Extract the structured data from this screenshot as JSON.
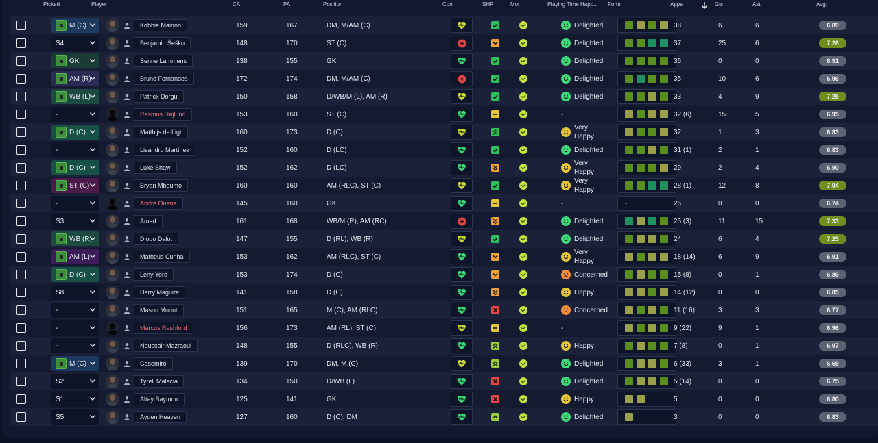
{
  "headers": {
    "picked": "Picked",
    "player": "Player",
    "ca": "CA",
    "pa": "PA",
    "position": "Position",
    "con": "Con",
    "shp": "SHP",
    "mor": "Mor",
    "playing_time": "Playing Time Happ...",
    "form": "Form",
    "apps": "Apps",
    "gls": "Gls",
    "ast": "Ast",
    "avg": "Avg."
  },
  "colors": {
    "con_green": "#3ed67a",
    "con_yellow": "#c9d93a",
    "con_red": "#e04848",
    "shp_green": "#2ec060",
    "shp_orange": "#e8a33a",
    "shp_yellow": "#e3c43a",
    "shp_lime": "#9ccc3a",
    "shp_red": "#e04848",
    "happy_green": "#3ed67a",
    "happy_yellow": "#e3c43a",
    "happy_orange": "#f28c3a"
  },
  "rows": [
    {
      "picked": "M (C)",
      "pos_style": "M",
      "pitch": true,
      "name": "Kobbie Mainoo",
      "loan": false,
      "ca": "159",
      "pa": "167",
      "position": "DM, M/AM (C)",
      "con": "con_yellow",
      "con_kind": "heart",
      "shp": "shp_green",
      "shp_kind": "check",
      "happy": "Delighted",
      "happy_color": "happy_green",
      "form": [
        "g",
        "y",
        "g",
        "y"
      ],
      "apps": "38",
      "gls": "6",
      "ast": "6",
      "avg": "6.89",
      "avg_hi": false
    },
    {
      "picked": "S4",
      "pos_style": "",
      "pitch": false,
      "name": "Benjamin Šeško",
      "loan": false,
      "ca": "148",
      "pa": "170",
      "position": "ST (C)",
      "con": "con_red",
      "con_kind": "cross",
      "shp": "shp_orange",
      "shp_kind": "down",
      "happy": "Delighted",
      "happy_color": "happy_green",
      "form": [
        "g",
        "g",
        "t",
        "t"
      ],
      "apps": "37",
      "gls": "25",
      "ast": "6",
      "avg": "7.28",
      "avg_hi": true
    },
    {
      "picked": "GK",
      "pos_style": "GK",
      "pitch": true,
      "name": "Senne Lammens",
      "loan": false,
      "ca": "138",
      "pa": "155",
      "position": "GK",
      "con": "con_green",
      "con_kind": "heart",
      "shp": "shp_green",
      "shp_kind": "check",
      "happy": "Delighted",
      "happy_color": "happy_green",
      "form": [
        "g",
        "g",
        "g",
        "g"
      ],
      "apps": "36",
      "gls": "0",
      "ast": "0",
      "avg": "6.91",
      "avg_hi": false
    },
    {
      "picked": "AM (R)",
      "pos_style": "AMR",
      "pitch": true,
      "name": "Bruno Fernandes",
      "loan": false,
      "ca": "172",
      "pa": "174",
      "position": "DM, M/AM (C)",
      "con": "con_red",
      "con_kind": "cross",
      "shp": "shp_green",
      "shp_kind": "check",
      "happy": "Delighted",
      "happy_color": "happy_green",
      "form": [
        "g",
        "t",
        "g",
        "g"
      ],
      "apps": "35",
      "gls": "10",
      "ast": "6",
      "avg": "6.96",
      "avg_hi": false
    },
    {
      "picked": "WB (L)",
      "pos_style": "WB",
      "pitch": true,
      "name": "Patrick Dorgu",
      "loan": false,
      "ca": "150",
      "pa": "158",
      "position": "D/WB/M (L), AM (R)",
      "con": "con_yellow",
      "con_kind": "heart",
      "shp": "shp_green",
      "shp_kind": "check",
      "happy": "Delighted",
      "happy_color": "happy_green",
      "form": [
        "g",
        "g",
        "y",
        "g"
      ],
      "apps": "33",
      "gls": "4",
      "ast": "9",
      "avg": "7.25",
      "avg_hi": true
    },
    {
      "picked": "-",
      "pos_style": "",
      "pitch": false,
      "name": "Rasmus Højlund",
      "loan": true,
      "ca": "153",
      "pa": "160",
      "position": "ST (C)",
      "con": "con_green",
      "con_kind": "heart",
      "shp": "shp_yellow",
      "shp_kind": "dash",
      "happy": "-",
      "happy_color": "",
      "form": [
        "y",
        "g",
        "y",
        "y"
      ],
      "apps": "32 (6)",
      "gls": "15",
      "ast": "5",
      "avg": "6.95",
      "avg_hi": false
    },
    {
      "picked": "D (C)",
      "pos_style": "D",
      "pitch": true,
      "name": "Matthijs de Ligt",
      "loan": false,
      "ca": "160",
      "pa": "173",
      "position": "D (C)",
      "con": "con_yellow",
      "con_kind": "heart",
      "shp": "shp_green",
      "shp_kind": "up2",
      "happy": "Very Happy",
      "happy_color": "happy_yellow",
      "form": [
        "y",
        "g",
        "g",
        "y"
      ],
      "apps": "32",
      "gls": "1",
      "ast": "3",
      "avg": "6.83",
      "avg_hi": false
    },
    {
      "picked": "-",
      "pos_style": "",
      "pitch": false,
      "name": "Lisandro Martínez",
      "loan": false,
      "ca": "152",
      "pa": "160",
      "position": "D (LC)",
      "con": "con_green",
      "con_kind": "heart",
      "shp": "shp_green",
      "shp_kind": "check",
      "happy": "Delighted",
      "happy_color": "happy_green",
      "form": [
        "g",
        "g",
        "y",
        "g"
      ],
      "apps": "31 (1)",
      "gls": "2",
      "ast": "1",
      "avg": "6.83",
      "avg_hi": false
    },
    {
      "picked": "D (C)",
      "pos_style": "D",
      "pitch": true,
      "name": "Luke Shaw",
      "loan": false,
      "ca": "152",
      "pa": "162",
      "position": "D (LC)",
      "con": "con_green",
      "con_kind": "heart",
      "shp": "shp_orange",
      "shp_kind": "down2",
      "happy": "Very Happy",
      "happy_color": "happy_yellow",
      "form": [
        "g",
        "g",
        "g",
        "y"
      ],
      "apps": "29",
      "gls": "2",
      "ast": "4",
      "avg": "6.90",
      "avg_hi": false
    },
    {
      "picked": "ST (C)",
      "pos_style": "ST",
      "pitch": true,
      "name": "Bryan Mbeumo",
      "loan": false,
      "ca": "160",
      "pa": "160",
      "position": "AM (RLC), ST (C)",
      "con": "con_yellow",
      "con_kind": "heart",
      "shp": "shp_green",
      "shp_kind": "check",
      "happy": "Very Happy",
      "happy_color": "happy_yellow",
      "form": [
        "g",
        "g",
        "t",
        "t"
      ],
      "apps": "28 (1)",
      "gls": "12",
      "ast": "8",
      "avg": "7.04",
      "avg_hi": true
    },
    {
      "picked": "-",
      "pos_style": "",
      "pitch": false,
      "name": "André Onana",
      "loan": true,
      "ca": "145",
      "pa": "160",
      "position": "GK",
      "con": "con_green",
      "con_kind": "heart",
      "shp": "shp_yellow",
      "shp_kind": "dash",
      "happy": "-",
      "happy_color": "",
      "form": [],
      "form_dash": "-",
      "apps": "26",
      "gls": "0",
      "ast": "0",
      "avg": "6.74",
      "avg_hi": false
    },
    {
      "picked": "S3",
      "pos_style": "",
      "pitch": false,
      "name": "Amad",
      "loan": false,
      "ca": "161",
      "pa": "168",
      "position": "WB/M (R), AM (RC)",
      "con": "con_red",
      "con_kind": "cross",
      "shp": "shp_orange",
      "shp_kind": "down2",
      "happy": "Delighted",
      "happy_color": "happy_green",
      "form": [
        "t",
        "y",
        "t",
        "g"
      ],
      "apps": "25 (3)",
      "gls": "11",
      "ast": "15",
      "avg": "7.33",
      "avg_hi": true
    },
    {
      "picked": "WB (R)",
      "pos_style": "WB",
      "pitch": true,
      "name": "Diogo Dalot",
      "loan": false,
      "ca": "147",
      "pa": "155",
      "position": "D (RL), WB (R)",
      "con": "con_yellow",
      "con_kind": "heart",
      "shp": "shp_green",
      "shp_kind": "check",
      "happy": "Delighted",
      "happy_color": "happy_green",
      "form": [
        "g",
        "y",
        "y",
        "g"
      ],
      "apps": "24",
      "gls": "6",
      "ast": "4",
      "avg": "7.25",
      "avg_hi": true
    },
    {
      "picked": "AM (L)",
      "pos_style": "AML",
      "pitch": true,
      "name": "Matheus Cunha",
      "loan": false,
      "ca": "153",
      "pa": "162",
      "position": "AM (RLC), ST (C)",
      "con": "con_green",
      "con_kind": "heart",
      "shp": "shp_orange",
      "shp_kind": "down",
      "happy": "Very Happy",
      "happy_color": "happy_yellow",
      "form": [
        "y",
        "g",
        "y",
        "y"
      ],
      "apps": "18 (14)",
      "gls": "6",
      "ast": "9",
      "avg": "6.91",
      "avg_hi": false
    },
    {
      "picked": "D (C)",
      "pos_style": "D",
      "pitch": true,
      "name": "Leny Yoro",
      "loan": false,
      "ca": "153",
      "pa": "174",
      "position": "D (C)",
      "con": "con_green",
      "con_kind": "heart",
      "shp": "shp_orange",
      "shp_kind": "down",
      "happy": "Concerned",
      "happy_color": "happy_orange",
      "form": [
        "g",
        "y",
        "g",
        "g"
      ],
      "apps": "15 (8)",
      "gls": "0",
      "ast": "1",
      "avg": "6.89",
      "avg_hi": false
    },
    {
      "picked": "S8",
      "pos_style": "",
      "pitch": false,
      "name": "Harry Maguire",
      "loan": false,
      "ca": "141",
      "pa": "158",
      "position": "D (C)",
      "con": "con_green",
      "con_kind": "heart",
      "shp": "shp_orange",
      "shp_kind": "down2",
      "happy": "Happy",
      "happy_color": "happy_yellow",
      "form": [
        "y",
        "y",
        "g",
        "y"
      ],
      "apps": "14 (12)",
      "gls": "0",
      "ast": "0",
      "avg": "6.85",
      "avg_hi": false
    },
    {
      "picked": "-",
      "pos_style": "",
      "pitch": false,
      "name": "Mason Mount",
      "loan": false,
      "ca": "151",
      "pa": "165",
      "position": "M (C), AM (RLC)",
      "con": "con_green",
      "con_kind": "heart",
      "shp": "shp_red",
      "shp_kind": "x",
      "happy": "Concerned",
      "happy_color": "happy_orange",
      "form": [
        "y",
        "g",
        "y",
        "g"
      ],
      "apps": "11 (16)",
      "gls": "3",
      "ast": "3",
      "avg": "6.77",
      "avg_hi": false
    },
    {
      "picked": "-",
      "pos_style": "",
      "pitch": false,
      "name": "Marcus Rashford",
      "loan": true,
      "ca": "156",
      "pa": "173",
      "position": "AM (RL), ST (C)",
      "con": "con_yellow",
      "con_kind": "heart",
      "shp": "shp_yellow",
      "shp_kind": "dash",
      "happy": "-",
      "happy_color": "",
      "form": [
        "y",
        "g",
        "y",
        "g"
      ],
      "apps": "9 (22)",
      "gls": "9",
      "ast": "1",
      "avg": "6.96",
      "avg_hi": false
    },
    {
      "picked": "-",
      "pos_style": "",
      "pitch": false,
      "name": "Noussair Mazraoui",
      "loan": false,
      "ca": "148",
      "pa": "155",
      "position": "D (RLC), WB (R)",
      "con": "con_green",
      "con_kind": "heart",
      "shp": "shp_lime",
      "shp_kind": "up2",
      "happy": "Happy",
      "happy_color": "happy_yellow",
      "form": [
        "g",
        "y",
        "g",
        "g"
      ],
      "apps": "7 (8)",
      "gls": "0",
      "ast": "1",
      "avg": "6.97",
      "avg_hi": false
    },
    {
      "picked": "M (C)",
      "pos_style": "M",
      "pitch": true,
      "name": "Casemiro",
      "loan": false,
      "ca": "139",
      "pa": "170",
      "position": "DM, M (C)",
      "con": "con_yellow",
      "con_kind": "heart",
      "shp": "shp_lime",
      "shp_kind": "up2",
      "happy": "Delighted",
      "happy_color": "happy_green",
      "form": [
        "g",
        "y",
        "y",
        "g"
      ],
      "apps": "6 (33)",
      "gls": "3",
      "ast": "1",
      "avg": "6.69",
      "avg_hi": false
    },
    {
      "picked": "S2",
      "pos_style": "",
      "pitch": false,
      "name": "Tyrell Malacia",
      "loan": false,
      "ca": "134",
      "pa": "150",
      "position": "D/WB (L)",
      "con": "con_green",
      "con_kind": "heart",
      "shp": "shp_red",
      "shp_kind": "x",
      "happy": "Delighted",
      "happy_color": "happy_green",
      "form": [
        "g",
        "y",
        "y",
        "g"
      ],
      "apps": "5 (14)",
      "gls": "0",
      "ast": "0",
      "avg": "6.75",
      "avg_hi": false
    },
    {
      "picked": "S1",
      "pos_style": "",
      "pitch": false,
      "name": "Altay Bayındır",
      "loan": false,
      "ca": "125",
      "pa": "141",
      "position": "GK",
      "con": "con_green",
      "con_kind": "heart",
      "shp": "shp_red",
      "shp_kind": "x",
      "happy": "Happy",
      "happy_color": "happy_yellow",
      "form": [
        "y",
        "y"
      ],
      "apps": "5",
      "gls": "0",
      "ast": "0",
      "avg": "6.80",
      "avg_hi": false
    },
    {
      "picked": "S5",
      "pos_style": "",
      "pitch": false,
      "name": "Ayden Heaven",
      "loan": false,
      "ca": "127",
      "pa": "160",
      "position": "D (C), DM",
      "con": "con_green",
      "con_kind": "heart",
      "shp": "shp_lime",
      "shp_kind": "up",
      "happy": "Delighted",
      "happy_color": "happy_green",
      "form": [
        "y"
      ],
      "apps": "3",
      "gls": "0",
      "ast": "0",
      "avg": "6.83",
      "avg_hi": false
    }
  ]
}
